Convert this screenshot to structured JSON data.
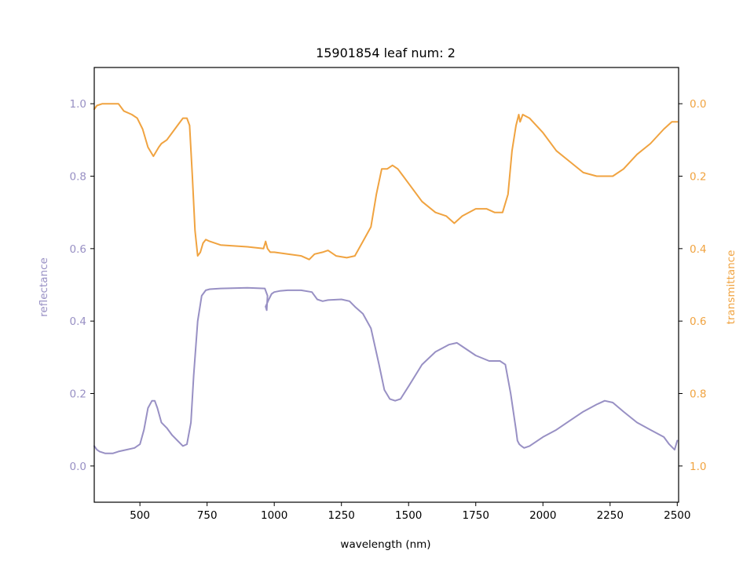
{
  "chart_data": {
    "type": "line",
    "title": "15901854 leaf num: 2",
    "xlabel": "wavelength (nm)",
    "ylabel_left": "reflectance",
    "ylabel_right": "transmittance",
    "xlim": [
      330,
      2505
    ],
    "ylim_left": [
      -0.1,
      1.1
    ],
    "ylim_right": [
      1.1,
      -0.1
    ],
    "right_axis_inverted": true,
    "x_ticks": [
      500,
      750,
      1000,
      1250,
      1500,
      1750,
      2000,
      2250,
      2500
    ],
    "x_tick_labels": [
      "500",
      "750",
      "1000",
      "1250",
      "1500",
      "1750",
      "2000",
      "2250",
      "2500"
    ],
    "y_left_ticks": [
      0.0,
      0.2,
      0.4,
      0.6,
      0.8,
      1.0
    ],
    "y_left_tick_labels": [
      "0.0",
      "0.2",
      "0.4",
      "0.6",
      "0.8",
      "1.0"
    ],
    "y_right_ticks": [
      0.0,
      0.2,
      0.4,
      0.6,
      0.8,
      1.0
    ],
    "y_right_tick_labels": [
      "0.0",
      "0.2",
      "0.4",
      "0.6",
      "0.8",
      "1.0"
    ],
    "grid": false,
    "colors": {
      "reflectance": "#9890c4",
      "transmittance": "#f0a340",
      "axes": "#000000"
    },
    "series": [
      {
        "axis": "left",
        "x": [
          330,
          340,
          350,
          370,
          400,
          420,
          450,
          480,
          500,
          515,
          530,
          545,
          555,
          565,
          580,
          600,
          620,
          640,
          660,
          675,
          690,
          700,
          715,
          730,
          745,
          760,
          800,
          900,
          965,
          975,
          972,
          968,
          980,
          990,
          1000,
          1020,
          1050,
          1100,
          1140,
          1160,
          1180,
          1200,
          1250,
          1280,
          1300,
          1330,
          1360,
          1390,
          1410,
          1430,
          1450,
          1470,
          1500,
          1550,
          1600,
          1650,
          1680,
          1700,
          1750,
          1800,
          1840,
          1860,
          1880,
          1900,
          1905,
          1912,
          1920,
          1930,
          1950,
          2000,
          2050,
          2100,
          2150,
          2200,
          2230,
          2260,
          2300,
          2350,
          2400,
          2450,
          2470,
          2490,
          2500
        ],
        "y": [
          0.055,
          0.045,
          0.04,
          0.035,
          0.035,
          0.04,
          0.045,
          0.05,
          0.06,
          0.1,
          0.16,
          0.18,
          0.18,
          0.16,
          0.12,
          0.105,
          0.085,
          0.07,
          0.055,
          0.06,
          0.12,
          0.25,
          0.4,
          0.47,
          0.485,
          0.488,
          0.49,
          0.492,
          0.49,
          0.47,
          0.43,
          0.44,
          0.46,
          0.475,
          0.48,
          0.483,
          0.485,
          0.485,
          0.48,
          0.46,
          0.455,
          0.458,
          0.46,
          0.455,
          0.44,
          0.42,
          0.38,
          0.28,
          0.21,
          0.185,
          0.18,
          0.185,
          0.22,
          0.28,
          0.315,
          0.335,
          0.34,
          0.33,
          0.305,
          0.29,
          0.29,
          0.28,
          0.2,
          0.1,
          0.07,
          0.06,
          0.055,
          0.05,
          0.055,
          0.08,
          0.1,
          0.125,
          0.15,
          0.17,
          0.18,
          0.175,
          0.15,
          0.12,
          0.1,
          0.08,
          0.06,
          0.045,
          0.07
        ]
      },
      {
        "axis": "right",
        "x": [
          330,
          340,
          360,
          400,
          420,
          440,
          470,
          490,
          510,
          530,
          550,
          570,
          580,
          600,
          620,
          640,
          660,
          675,
          685,
          695,
          705,
          715,
          725,
          735,
          745,
          760,
          800,
          900,
          960,
          968,
          975,
          985,
          1000,
          1050,
          1100,
          1130,
          1150,
          1180,
          1200,
          1230,
          1270,
          1300,
          1330,
          1360,
          1380,
          1400,
          1420,
          1440,
          1460,
          1480,
          1500,
          1550,
          1600,
          1640,
          1670,
          1700,
          1750,
          1790,
          1820,
          1850,
          1870,
          1885,
          1900,
          1910,
          1915,
          1925,
          1950,
          2000,
          2050,
          2100,
          2150,
          2200,
          2230,
          2260,
          2300,
          2350,
          2400,
          2450,
          2480,
          2500
        ],
        "y": [
          0.015,
          0.005,
          0.0,
          0.0,
          0.0,
          0.02,
          0.03,
          0.04,
          0.07,
          0.12,
          0.145,
          0.12,
          0.11,
          0.1,
          0.08,
          0.06,
          0.04,
          0.04,
          0.06,
          0.2,
          0.35,
          0.42,
          0.41,
          0.385,
          0.375,
          0.38,
          0.39,
          0.395,
          0.4,
          0.38,
          0.4,
          0.41,
          0.41,
          0.415,
          0.42,
          0.43,
          0.415,
          0.41,
          0.405,
          0.42,
          0.425,
          0.42,
          0.38,
          0.34,
          0.25,
          0.18,
          0.18,
          0.17,
          0.18,
          0.2,
          0.22,
          0.27,
          0.3,
          0.31,
          0.33,
          0.31,
          0.29,
          0.29,
          0.3,
          0.3,
          0.25,
          0.13,
          0.06,
          0.03,
          0.05,
          0.03,
          0.04,
          0.08,
          0.13,
          0.16,
          0.19,
          0.2,
          0.2,
          0.2,
          0.18,
          0.14,
          0.11,
          0.07,
          0.05,
          0.05
        ]
      }
    ]
  }
}
